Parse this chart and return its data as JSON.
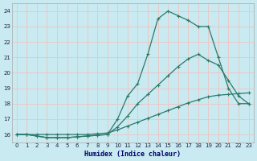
{
  "xlabel": "Humidex (Indice chaleur)",
  "xlim": [
    -0.5,
    23.5
  ],
  "ylim": [
    15.5,
    24.5
  ],
  "xticks": [
    0,
    1,
    2,
    3,
    4,
    5,
    6,
    7,
    8,
    9,
    10,
    11,
    12,
    13,
    14,
    15,
    16,
    17,
    18,
    19,
    20,
    21,
    22,
    23
  ],
  "yticks": [
    16,
    17,
    18,
    19,
    20,
    21,
    22,
    23,
    24
  ],
  "bg_color": "#c8eaf0",
  "grid_color": "#e8c8c8",
  "line_color": "#2a7a6a",
  "line1_x": [
    0,
    1,
    2,
    3,
    4,
    5,
    6,
    7,
    8,
    9,
    10,
    11,
    12,
    13,
    14,
    15,
    16,
    17,
    18,
    19,
    20,
    21,
    22,
    23
  ],
  "line1_y": [
    16.0,
    16.0,
    15.9,
    15.8,
    15.8,
    15.8,
    15.85,
    15.9,
    15.95,
    16.0,
    17.0,
    18.5,
    19.3,
    21.2,
    23.5,
    24.0,
    23.7,
    23.4,
    23.0,
    23.0,
    21.0,
    19.0,
    18.0,
    18.0
  ],
  "line2_x": [
    0,
    1,
    2,
    3,
    4,
    5,
    6,
    7,
    8,
    9,
    10,
    11,
    12,
    13,
    14,
    15,
    16,
    17,
    18,
    19,
    20,
    21,
    22,
    23
  ],
  "line2_y": [
    16.0,
    16.0,
    15.9,
    15.8,
    15.8,
    15.8,
    15.85,
    15.9,
    15.95,
    16.0,
    16.5,
    17.2,
    18.0,
    18.6,
    19.2,
    19.8,
    20.4,
    20.9,
    21.2,
    20.8,
    20.5,
    19.5,
    18.5,
    18.0
  ],
  "line3_x": [
    0,
    1,
    2,
    3,
    4,
    5,
    6,
    7,
    8,
    9,
    10,
    11,
    12,
    13,
    14,
    15,
    16,
    17,
    18,
    19,
    20,
    21,
    22,
    23
  ],
  "line3_y": [
    16.0,
    16.0,
    16.0,
    16.0,
    16.0,
    16.0,
    16.0,
    16.0,
    16.05,
    16.1,
    16.3,
    16.55,
    16.8,
    17.05,
    17.3,
    17.55,
    17.8,
    18.05,
    18.25,
    18.45,
    18.55,
    18.6,
    18.65,
    18.7
  ]
}
